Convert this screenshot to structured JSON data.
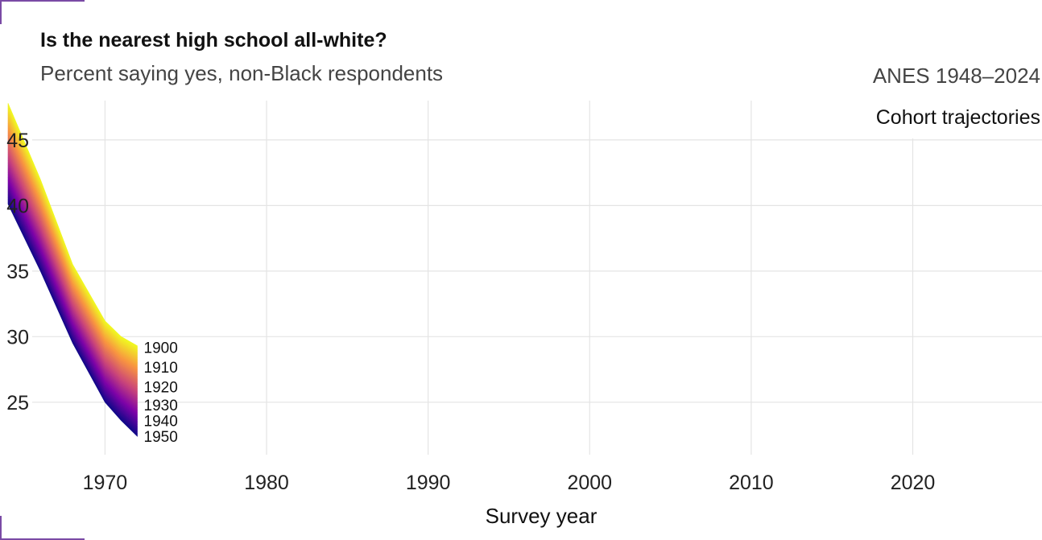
{
  "header": {
    "title": "Is the nearest high school all-white?",
    "subtitle": "Percent saying yes, non-Black respondents",
    "source": "ANES 1948–2024",
    "facet_label": "Cohort trajectories"
  },
  "chart_data": {
    "type": "area",
    "title": "Is the nearest high school all-white?",
    "subtitle": "Percent saying yes, non-Black respondents",
    "xlabel": "Survey year",
    "ylabel": "",
    "xlim": [
      1963.5,
      2028
    ],
    "ylim": [
      21,
      48
    ],
    "x_ticks": [
      1970,
      1980,
      1990,
      2000,
      2010,
      2020
    ],
    "y_ticks": [
      25,
      30,
      35,
      40,
      45
    ],
    "grid": true,
    "color_scale": [
      "#0d0887",
      "#7e03a8",
      "#cc4778",
      "#f89540",
      "#f0f921"
    ],
    "upper_edge": {
      "x": [
        1964,
        1966,
        1968,
        1970,
        1971,
        1972
      ],
      "y": [
        47.8,
        42.0,
        35.5,
        31.2,
        30.0,
        29.3
      ]
    },
    "lower_edge": {
      "x": [
        1964,
        1966,
        1968,
        1970,
        1971,
        1972
      ],
      "y": [
        40.1,
        35.0,
        29.5,
        25.0,
        23.6,
        22.4
      ]
    },
    "cohort_labels": [
      {
        "label": "1900",
        "y": 29.2
      },
      {
        "label": "1910",
        "y": 27.7
      },
      {
        "label": "1920",
        "y": 26.2
      },
      {
        "label": "1930",
        "y": 24.8
      },
      {
        "label": "1940",
        "y": 23.6
      },
      {
        "label": "1950",
        "y": 22.4
      }
    ]
  }
}
